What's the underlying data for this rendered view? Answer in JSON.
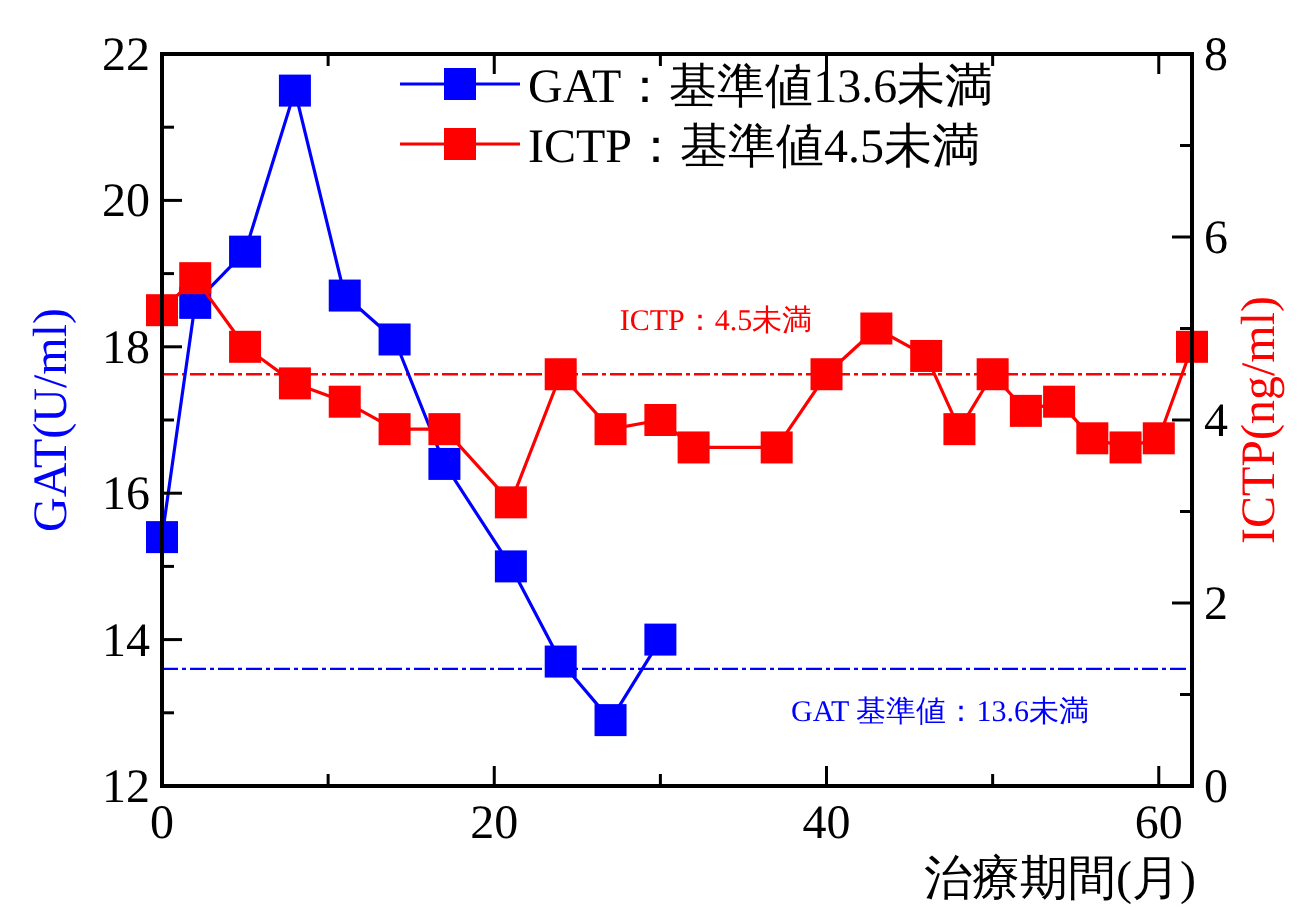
{
  "chart_data": {
    "type": "line",
    "xlabel": "治療期間(月)",
    "ylabel": "GAT(U/ml)",
    "y2label": "ICTP(ng/ml)",
    "xlim": [
      0,
      62
    ],
    "xticks": [
      0,
      {
        "value": 10,
        "label": null
      },
      20,
      {
        "value": 30,
        "label": null
      },
      40,
      {
        "value": 50,
        "label": null
      },
      60
    ],
    "ylim": [
      12,
      22
    ],
    "yticks": [
      12,
      {
        "value": 13,
        "label": null
      },
      14,
      {
        "value": 15,
        "label": null
      },
      16,
      {
        "value": 17,
        "label": null
      },
      18,
      {
        "value": 19,
        "label": null
      },
      20,
      {
        "value": 21,
        "label": null
      },
      22
    ],
    "y2lim": [
      0,
      8
    ],
    "y2ticks": [
      0,
      {
        "value": 1,
        "label": null
      },
      2,
      {
        "value": 3,
        "label": null
      },
      4,
      {
        "value": 5,
        "label": null
      },
      6,
      {
        "value": 7,
        "label": null
      },
      8
    ],
    "marker": "square",
    "line_style": "solid",
    "grid": false,
    "legend": "top right",
    "series": [
      {
        "name": "GAT：基準値13.6未満",
        "color": "#0000ff",
        "x": [
          0,
          2,
          5,
          8,
          11,
          14,
          17,
          21,
          24,
          27,
          30
        ],
        "values": [
          15.4,
          18.6,
          19.3,
          21.5,
          18.7,
          18.1,
          16.4,
          15.0,
          13.7,
          12.9,
          14.0
        ]
      },
      {
        "name": "ICTP：基準値4.5未満",
        "color": "#ff0000",
        "axis": "y2",
        "x": [
          0,
          2,
          5,
          8,
          11,
          14,
          17,
          21,
          24,
          27,
          30,
          32,
          37,
          40,
          43,
          46,
          48,
          50,
          52,
          54,
          56,
          58,
          60,
          62
        ],
        "values": [
          5.2,
          5.55,
          4.8,
          4.4,
          4.2,
          3.9,
          3.9,
          3.1,
          4.5,
          3.9,
          4.0,
          3.7,
          3.7,
          4.5,
          5.0,
          4.7,
          3.9,
          4.5,
          4.1,
          4.2,
          3.8,
          3.7,
          3.8,
          4.8
        ]
      }
    ],
    "ref_lines": [
      {
        "axis": "y",
        "value": 13.6,
        "label": "GAT 基準値：13.6未満",
        "color": "#0000ff",
        "line_style": "dashed"
      },
      {
        "axis": "y2",
        "value": 4.5,
        "label": "ICTP：4.5未満",
        "color": "#ff0000",
        "line_style": "dashed"
      }
    ]
  }
}
